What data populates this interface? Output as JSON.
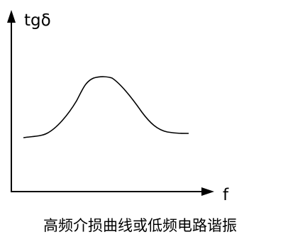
{
  "diagram": {
    "y_axis_label": "tgδ",
    "x_axis_label": "f",
    "caption": "高频介损曲线或低频电路谐振"
  },
  "colors": {
    "ink": "#000000",
    "background": "#ffffff"
  }
}
